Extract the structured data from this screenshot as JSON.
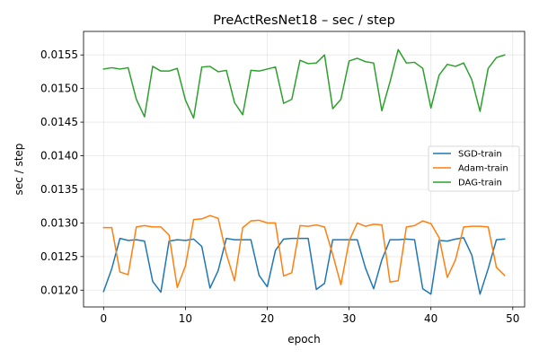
{
  "chart_data": {
    "type": "line",
    "title": "PreActResNet18 – sec / step",
    "xlabel": "epoch",
    "ylabel": "sec / step",
    "xlim": [
      -2.45,
      51.45
    ],
    "ylim": [
      0.01175,
      0.01585
    ],
    "xticks": [
      0,
      10,
      20,
      30,
      40,
      50
    ],
    "yticks": [
      0.012,
      0.0125,
      0.013,
      0.0135,
      0.014,
      0.0145,
      0.015,
      0.0155
    ],
    "ytick_labels": [
      "0.0120",
      "0.0125",
      "0.0130",
      "0.0135",
      "0.0140",
      "0.0145",
      "0.0150",
      "0.0155"
    ],
    "grid": true,
    "legend_position": "center-right",
    "x": [
      0,
      1,
      2,
      3,
      4,
      5,
      6,
      7,
      8,
      9,
      10,
      11,
      12,
      13,
      14,
      15,
      16,
      17,
      18,
      19,
      20,
      21,
      22,
      23,
      24,
      25,
      26,
      27,
      28,
      29,
      30,
      31,
      32,
      33,
      34,
      35,
      36,
      37,
      38,
      39,
      40,
      41,
      42,
      43,
      44,
      45,
      46,
      47,
      48,
      49
    ],
    "series": [
      {
        "name": "SGD-train",
        "color": "#1f77b4",
        "values": [
          0.01198,
          0.01232,
          0.01277,
          0.01274,
          0.01275,
          0.01273,
          0.01213,
          0.01197,
          0.01273,
          0.01275,
          0.01274,
          0.01276,
          0.01265,
          0.01203,
          0.01229,
          0.01277,
          0.01275,
          0.01275,
          0.01275,
          0.01222,
          0.01205,
          0.01259,
          0.01276,
          0.01277,
          0.01277,
          0.01277,
          0.01201,
          0.0121,
          0.01275,
          0.01275,
          0.01275,
          0.01275,
          0.01233,
          0.01202,
          0.01245,
          0.01275,
          0.01275,
          0.01276,
          0.01275,
          0.01202,
          0.01194,
          0.01274,
          0.01273,
          0.01276,
          0.01278,
          0.01252,
          0.01194,
          0.01232,
          0.01275,
          0.01276
        ]
      },
      {
        "name": "Adam-train",
        "color": "#ff7f0e",
        "values": [
          0.01293,
          0.01293,
          0.01227,
          0.01223,
          0.01294,
          0.01296,
          0.01294,
          0.01294,
          0.01282,
          0.01204,
          0.01236,
          0.01305,
          0.01306,
          0.01311,
          0.01307,
          0.01254,
          0.01214,
          0.01293,
          0.01303,
          0.01304,
          0.013,
          0.013,
          0.01221,
          0.01226,
          0.01296,
          0.01295,
          0.01297,
          0.01294,
          0.01253,
          0.01208,
          0.01273,
          0.013,
          0.01295,
          0.01298,
          0.01297,
          0.01212,
          0.01214,
          0.01294,
          0.01296,
          0.01303,
          0.01299,
          0.01278,
          0.01219,
          0.01245,
          0.01294,
          0.01295,
          0.01295,
          0.01294,
          0.01234,
          0.01222
        ]
      },
      {
        "name": "DAG-train",
        "color": "#2ca02c",
        "values": [
          0.01529,
          0.01531,
          0.01529,
          0.01531,
          0.01484,
          0.01458,
          0.01533,
          0.01526,
          0.01526,
          0.0153,
          0.01483,
          0.01456,
          0.01532,
          0.01533,
          0.01525,
          0.01527,
          0.01479,
          0.01461,
          0.01527,
          0.01526,
          0.01529,
          0.01532,
          0.01478,
          0.01484,
          0.01542,
          0.01537,
          0.01538,
          0.0155,
          0.0147,
          0.01484,
          0.01541,
          0.01545,
          0.0154,
          0.01538,
          0.01467,
          0.0151,
          0.01558,
          0.01538,
          0.01539,
          0.0153,
          0.01471,
          0.0152,
          0.01536,
          0.01533,
          0.01538,
          0.01513,
          0.01466,
          0.0153,
          0.01546,
          0.0155
        ]
      }
    ]
  }
}
